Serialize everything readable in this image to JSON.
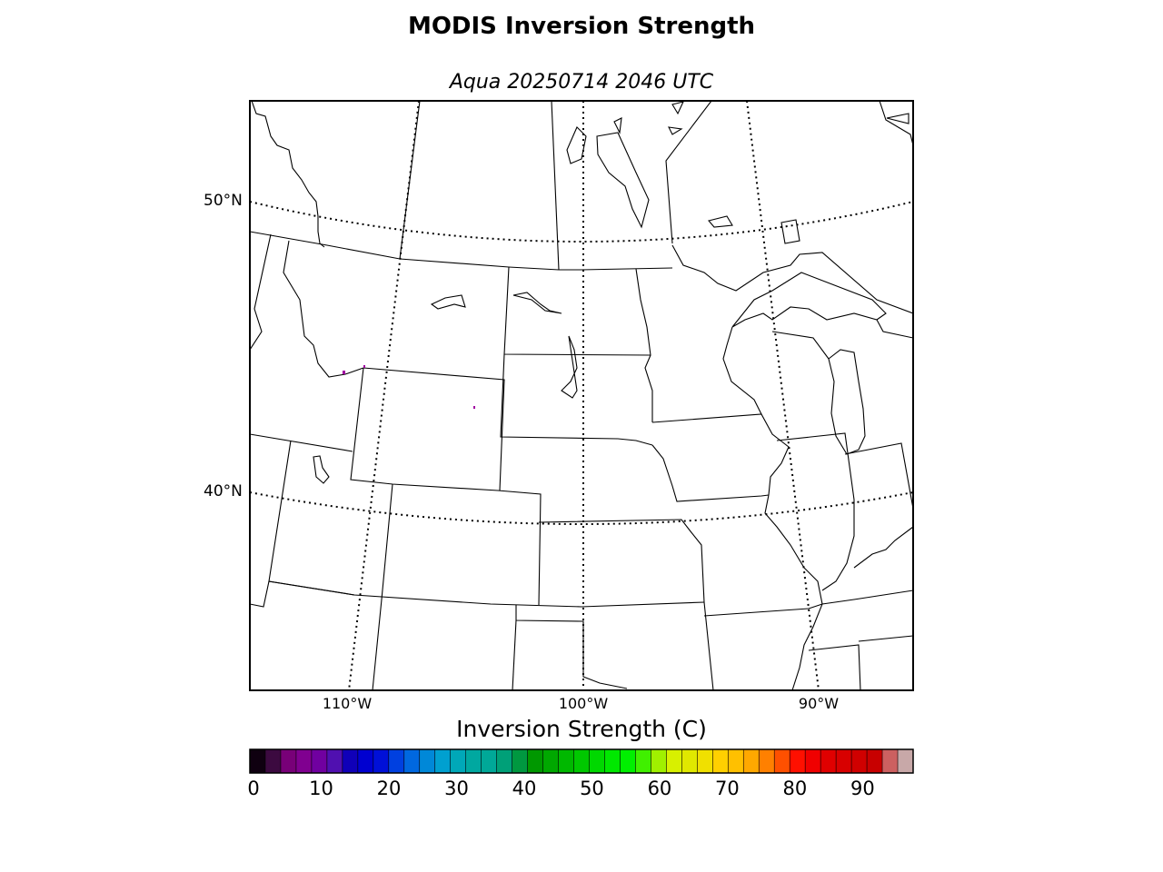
{
  "header": {
    "title": "MODIS Inversion Strength",
    "subtitle": "Aqua 20250714 2046 UTC"
  },
  "map": {
    "lat_labels": [
      "50°N",
      "40°N"
    ],
    "lon_labels": [
      "110°W",
      "100°W",
      "90°W"
    ]
  },
  "colorbar": {
    "label": "Inversion Strength (C)",
    "ticks": [
      "0",
      "10",
      "20",
      "30",
      "40",
      "50",
      "60",
      "70",
      "80",
      "90"
    ],
    "range": [
      0,
      98
    ],
    "colors": [
      "#0f0010",
      "#3c0a40",
      "#780078",
      "#800090",
      "#7000a0",
      "#5010b0",
      "#1000b8",
      "#0000d0",
      "#0010d8",
      "#0040e0",
      "#0068e0",
      "#0088d8",
      "#00a0d0",
      "#00a8b8",
      "#00a8a0",
      "#00a898",
      "#00a078",
      "#009840",
      "#009800",
      "#00a800",
      "#00b800",
      "#00c800",
      "#00d800",
      "#00e800",
      "#00f000",
      "#40f000",
      "#a0f000",
      "#d8f000",
      "#e0e800",
      "#f0e000",
      "#ffd000",
      "#ffc000",
      "#ffa800",
      "#ff8000",
      "#ff5000",
      "#ff1000",
      "#f00000",
      "#e00000",
      "#d80000",
      "#d00000",
      "#c80000",
      "#cc6060",
      "#c8a8a8"
    ]
  }
}
